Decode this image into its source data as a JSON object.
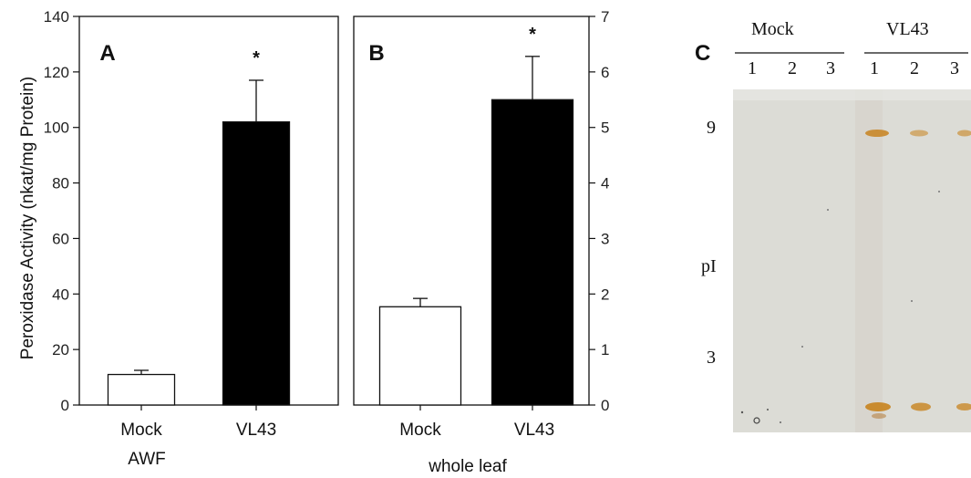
{
  "figure": {
    "panel_c": {
      "letter": "C",
      "group_labels": [
        "Mock",
        "VL43"
      ],
      "lane_labels": [
        "1",
        "2",
        "3",
        "1",
        "2",
        "3"
      ],
      "pi_marks": [
        "9",
        "pI",
        "3"
      ],
      "gel_color": "#dcdcd6",
      "band_color": "#c8831e"
    }
  },
  "chart_data": [
    {
      "type": "bar",
      "panel": "A",
      "xlabel": "AWF",
      "ylabel": "Peroxidase Activity (nkat/mg Protein)",
      "categories": [
        "Mock",
        "VL43"
      ],
      "values": [
        11,
        102
      ],
      "errors": [
        1.5,
        15
      ],
      "bar_colors": [
        "#ffffff",
        "#000000"
      ],
      "significance": [
        "",
        "*"
      ],
      "ylim": [
        0,
        140
      ],
      "yticks": [
        0,
        20,
        40,
        60,
        80,
        100,
        120,
        140
      ],
      "yaxis_side": "left"
    },
    {
      "type": "bar",
      "panel": "B",
      "xlabel": "whole leaf",
      "categories": [
        "Mock",
        "VL43"
      ],
      "values": [
        1.77,
        5.5
      ],
      "errors": [
        0.15,
        0.78
      ],
      "bar_colors": [
        "#ffffff",
        "#000000"
      ],
      "significance": [
        "",
        "*"
      ],
      "ylim": [
        0,
        7
      ],
      "yticks": [
        0,
        1,
        2,
        3,
        4,
        5,
        6,
        7
      ],
      "yaxis_side": "right"
    }
  ]
}
